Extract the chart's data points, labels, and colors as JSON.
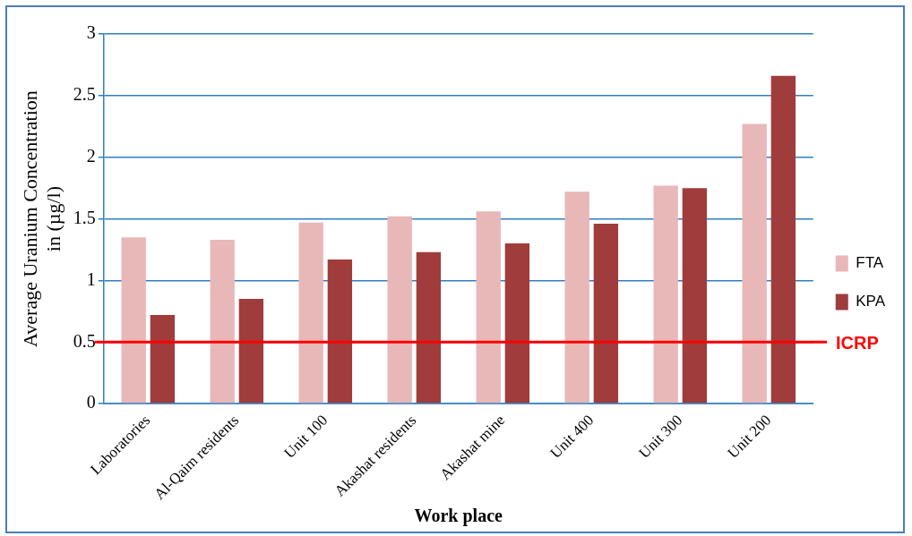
{
  "chart_data": {
    "type": "bar",
    "xlabel": "Work place",
    "ylabel": "Average Uranium Concentration\nin (µg/l)",
    "categories": [
      "Laboratories",
      "Al-Qaim residents",
      "Unit 100",
      "Akashat residents",
      "Akashat mine",
      "Unit 400",
      "Unit 300",
      "Unit 200"
    ],
    "series": [
      {
        "name": "FTA",
        "color": "#e8b7b7",
        "values": [
          1.35,
          1.33,
          1.47,
          1.52,
          1.56,
          1.72,
          1.77,
          2.27
        ]
      },
      {
        "name": "KPA",
        "color": "#a03c3c",
        "values": [
          0.72,
          0.85,
          1.17,
          1.23,
          1.3,
          1.46,
          1.75,
          2.66
        ]
      }
    ],
    "ylim": [
      0,
      3
    ],
    "yticks": [
      0,
      0.5,
      1,
      1.5,
      2,
      2.5,
      3
    ],
    "grid": "y",
    "legend": "right",
    "ref_lines": [
      {
        "axis": "y",
        "value": 0.5,
        "label": "ICRP",
        "color": "#ff0000"
      }
    ]
  }
}
